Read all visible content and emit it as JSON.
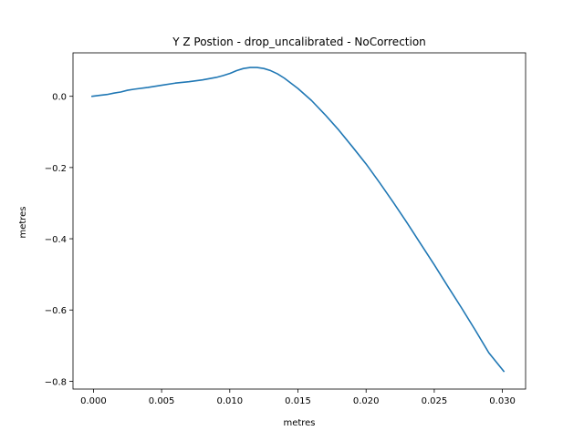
{
  "chart_data": {
    "type": "line",
    "title": "Y Z Postion - drop_uncalibrated - NoCorrection",
    "xlabel": "metres",
    "ylabel": "metres",
    "xlim": [
      -0.0015,
      0.0317
    ],
    "ylim": [
      -0.822,
      0.122
    ],
    "xticks": [
      0.0,
      0.005,
      0.01,
      0.015,
      0.02,
      0.025,
      0.03
    ],
    "xtick_labels": [
      "0.000",
      "0.005",
      "0.010",
      "0.015",
      "0.020",
      "0.025",
      "0.030"
    ],
    "yticks": [
      0.0,
      -0.2,
      -0.4,
      -0.6,
      -0.8
    ],
    "ytick_labels": [
      "0.0",
      "−0.2",
      "−0.4",
      "−0.6",
      "−0.8"
    ],
    "grid": false,
    "series": [
      {
        "color": "#1f77b4",
        "x": [
          -0.0001,
          0.0005,
          0.001,
          0.0015,
          0.002,
          0.0025,
          0.003,
          0.004,
          0.005,
          0.006,
          0.007,
          0.008,
          0.009,
          0.0095,
          0.01,
          0.0105,
          0.011,
          0.0115,
          0.012,
          0.0125,
          0.013,
          0.0135,
          0.014,
          0.015,
          0.016,
          0.017,
          0.018,
          0.019,
          0.02,
          0.021,
          0.022,
          0.023,
          0.024,
          0.025,
          0.026,
          0.027,
          0.028,
          0.029,
          0.0301
        ],
        "y": [
          0.0,
          0.003,
          0.005,
          0.009,
          0.012,
          0.017,
          0.02,
          0.025,
          0.031,
          0.037,
          0.041,
          0.046,
          0.053,
          0.058,
          0.064,
          0.072,
          0.078,
          0.081,
          0.081,
          0.078,
          0.072,
          0.063,
          0.051,
          0.022,
          -0.012,
          -0.052,
          -0.095,
          -0.142,
          -0.19,
          -0.243,
          -0.298,
          -0.355,
          -0.414,
          -0.473,
          -0.534,
          -0.594,
          -0.656,
          -0.72,
          -0.772
        ]
      }
    ]
  }
}
